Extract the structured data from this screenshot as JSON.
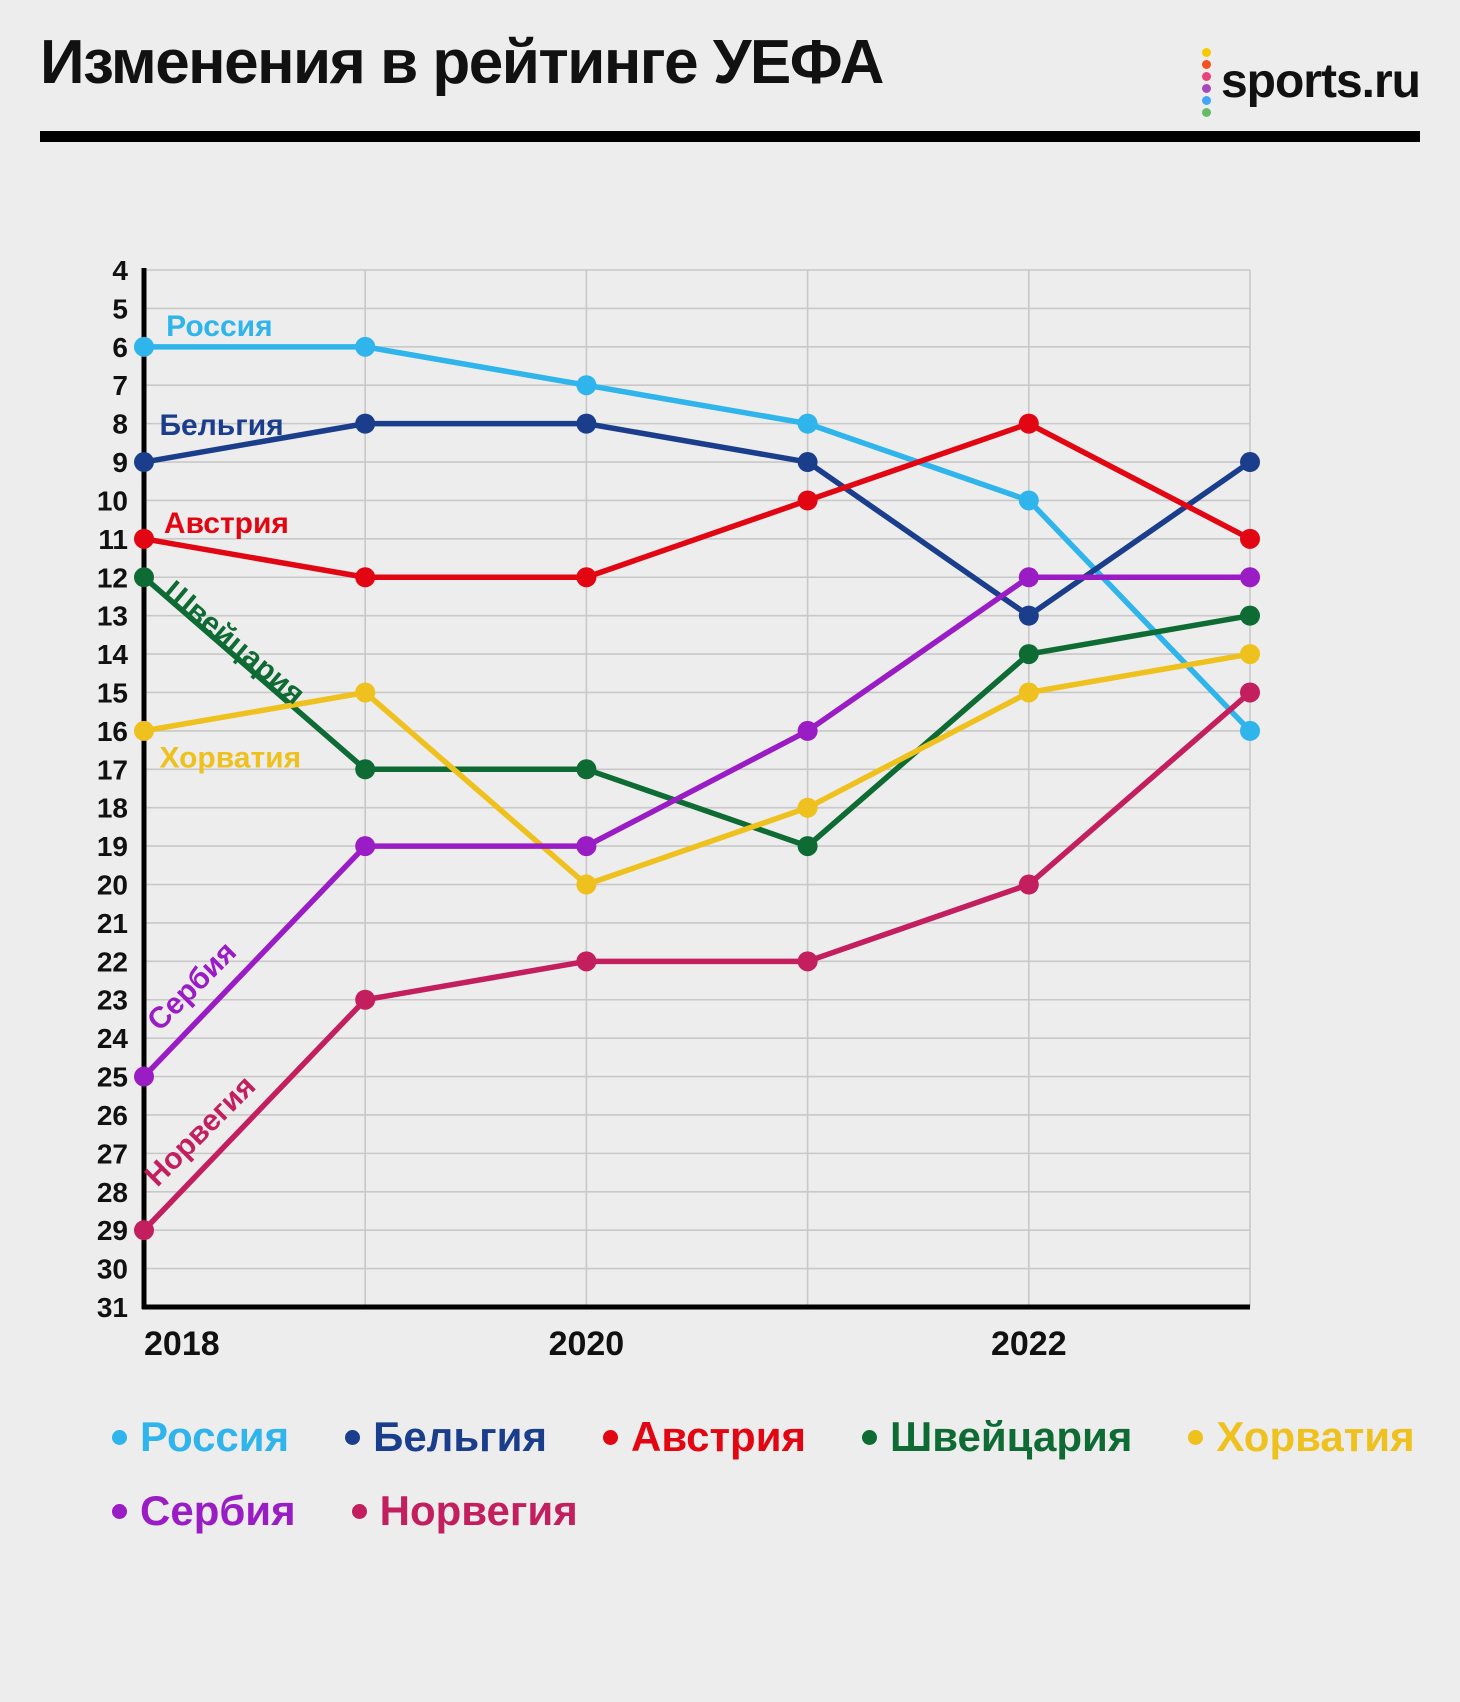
{
  "header": {
    "title": "Изменения в рейтинге УЕФА",
    "logo": {
      "text": "sports.ru",
      "dot_colors": [
        "#f8c800",
        "#f4511e",
        "#ec407a",
        "#ab47bc",
        "#42a5f5",
        "#66bb6a"
      ]
    }
  },
  "chart_data": {
    "type": "line",
    "title": "Изменения в рейтинге УЕФА",
    "x": [
      2018,
      2019,
      2020,
      2021,
      2022,
      2023
    ],
    "x_tick_labels": [
      {
        "label": "2018",
        "year": 2018
      },
      {
        "label": "2020",
        "year": 2020
      },
      {
        "label": "2022",
        "year": 2022
      }
    ],
    "xlabel": "",
    "ylabel": "",
    "ylim": [
      4,
      31
    ],
    "y_axis_note": "UEFA ranking position, lower number is better, axis inverted (4 at top, 31 at bottom), tick every 1",
    "grid": true,
    "grid_color": "#c8c8c8",
    "axis_color": "#000000",
    "legend_position": "bottom",
    "series": [
      {
        "name": "Россия",
        "color": "#2fb4ec",
        "values": [
          6,
          6,
          7,
          8,
          10,
          16
        ],
        "inline_label": {
          "x": 2018.1,
          "y": 5.72,
          "rotate": 0
        }
      },
      {
        "name": "Бельгия",
        "color": "#1a3e8c",
        "values": [
          9,
          8,
          8,
          9,
          13,
          9
        ],
        "inline_label": {
          "x": 2018.07,
          "y": 8.3,
          "rotate": 0
        }
      },
      {
        "name": "Австрия",
        "color": "#e20613",
        "values": [
          11,
          12,
          12,
          10,
          8,
          11
        ],
        "inline_label": {
          "x": 2018.09,
          "y": 10.85,
          "rotate": 0
        }
      },
      {
        "name": "Швейцария",
        "color": "#0e6b33",
        "values": [
          12,
          17,
          17,
          19,
          14,
          13
        ],
        "inline_label": {
          "x": 2018.08,
          "y": 12.45,
          "rotate": 40
        }
      },
      {
        "name": "Хорватия",
        "color": "#eec11e",
        "values": [
          16,
          15,
          20,
          18,
          15,
          14
        ],
        "inline_label": {
          "x": 2018.07,
          "y": 16.95,
          "rotate": 0
        }
      },
      {
        "name": "Сербия",
        "color": "#9a1cc5",
        "values": [
          25,
          19,
          19,
          16,
          12,
          12
        ],
        "inline_label": {
          "x": 2018.07,
          "y": 23.85,
          "rotate": -45
        }
      },
      {
        "name": "Норвегия",
        "color": "#c31e5e",
        "values": [
          29,
          23,
          22,
          22,
          20,
          15
        ],
        "inline_label": {
          "x": 2018.06,
          "y": 27.9,
          "rotate": -45
        }
      }
    ]
  }
}
